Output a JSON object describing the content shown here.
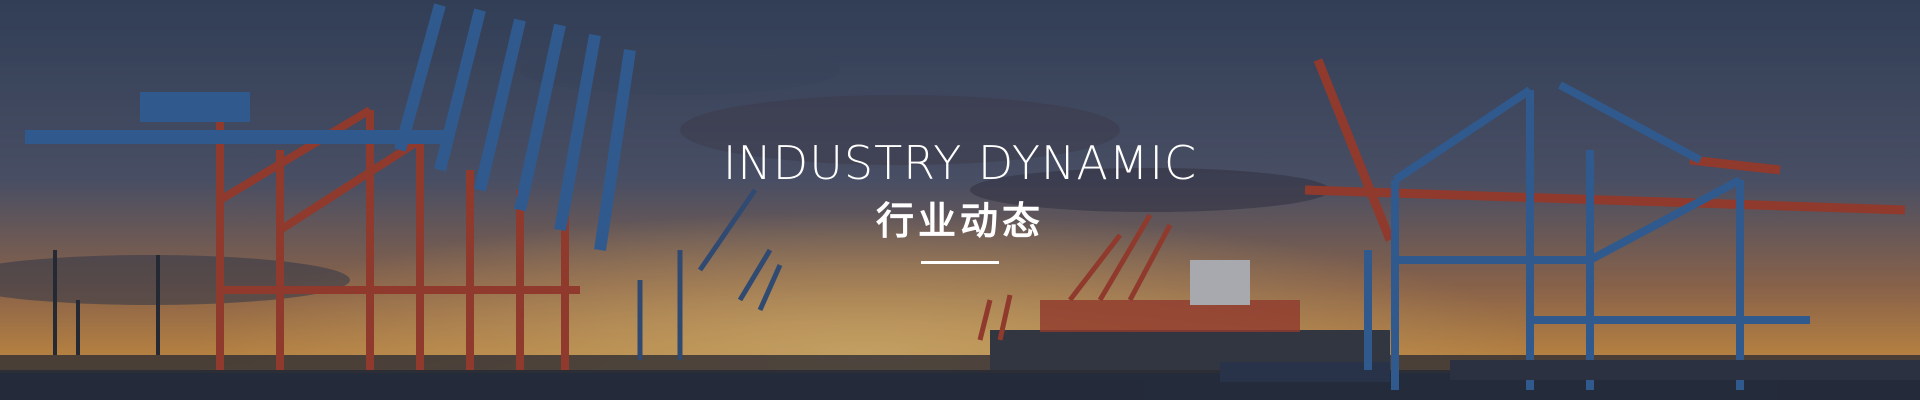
{
  "banner": {
    "title_en": "INDUSTRY DYNAMIC",
    "title_zh": "行业动态",
    "image_label": "harbor-cranes-sunset"
  },
  "colors": {
    "sky_top": "#3b4a66",
    "sky_glow": "#e8a04a",
    "crane_red": "#b9442e",
    "crane_blue": "#3a6fb0",
    "water": "#2a3040",
    "text": "#ffffff"
  }
}
